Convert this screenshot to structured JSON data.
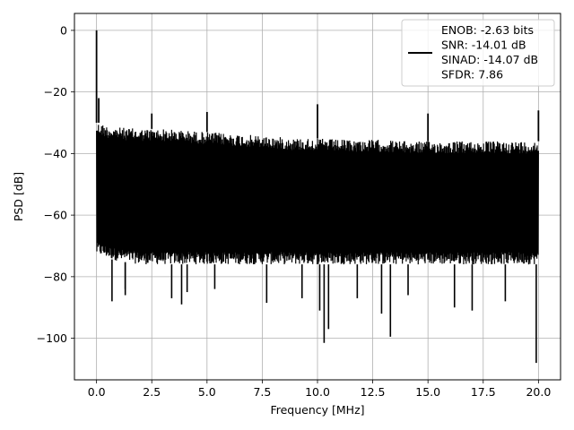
{
  "chart_data": {
    "type": "line",
    "xlabel": "Frequency [MHz]",
    "ylabel": "PSD [dB]",
    "xlim": [
      -1.0,
      21.0
    ],
    "ylim": [
      -113.5,
      5.5
    ],
    "xticks": [
      0.0,
      2.5,
      5.0,
      7.5,
      10.0,
      12.5,
      15.0,
      17.5,
      20.0
    ],
    "xtick_labels": [
      "0.0",
      "2.5",
      "5.0",
      "7.5",
      "10.0",
      "12.5",
      "15.0",
      "17.5",
      "20.0"
    ],
    "yticks": [
      0,
      -20,
      -40,
      -60,
      -80,
      -100
    ],
    "ytick_labels": [
      "0",
      "−20",
      "−40",
      "−60",
      "−80",
      "−100"
    ],
    "grid": true,
    "legend_position": "top-right",
    "series": [
      {
        "color": "#000000",
        "legend_lines": [
          "ENOB: -2.63 bits",
          "SNR: -14.01 dB",
          "SINAD: -14.07 dB",
          "SFDR: 7.86"
        ],
        "noise_envelope": {
          "x": [
            0.0,
            0.1,
            0.5,
            1.0,
            2.0,
            3.0,
            4.0,
            5.0,
            6.0,
            7.0,
            8.0,
            9.0,
            10.0,
            11.0,
            12.0,
            13.0,
            14.0,
            15.0,
            16.0,
            17.0,
            18.0,
            19.0,
            20.0
          ],
          "upper_db": [
            -30,
            -30,
            -31,
            -31.5,
            -32,
            -32,
            -32.5,
            -33,
            -33.5,
            -34,
            -34.5,
            -35,
            -35,
            -35.5,
            -35.5,
            -35.5,
            -36,
            -36,
            -36,
            -36,
            -36,
            -36,
            -36
          ],
          "lower_db": [
            -73,
            -73,
            -74,
            -75,
            -76,
            -76,
            -76,
            -76,
            -76,
            -76,
            -76,
            -76,
            -76,
            -76,
            -76,
            -76,
            -76,
            -76,
            -76,
            -76,
            -76,
            -76,
            -76
          ]
        },
        "spurs": [
          {
            "x": 0.0,
            "y": 0
          },
          {
            "x": 0.1,
            "y": -22
          },
          {
            "x": 2.5,
            "y": -27
          },
          {
            "x": 5.0,
            "y": -26.5
          },
          {
            "x": 10.0,
            "y": -24
          },
          {
            "x": 15.0,
            "y": -27
          },
          {
            "x": 20.0,
            "y": -26
          }
        ],
        "dips": [
          {
            "x": 0.7,
            "y": -88
          },
          {
            "x": 1.3,
            "y": -84
          },
          {
            "x": 1.3,
            "y": -86
          },
          {
            "x": 3.4,
            "y": -87
          },
          {
            "x": 3.85,
            "y": -89
          },
          {
            "x": 4.1,
            "y": -85
          },
          {
            "x": 5.35,
            "y": -84
          },
          {
            "x": 7.7,
            "y": -88.5
          },
          {
            "x": 9.3,
            "y": -87
          },
          {
            "x": 10.1,
            "y": -91
          },
          {
            "x": 10.3,
            "y": -101.5
          },
          {
            "x": 10.5,
            "y": -97
          },
          {
            "x": 11.8,
            "y": -87
          },
          {
            "x": 12.9,
            "y": -92
          },
          {
            "x": 13.3,
            "y": -99.5
          },
          {
            "x": 14.1,
            "y": -86
          },
          {
            "x": 16.2,
            "y": -90
          },
          {
            "x": 17.0,
            "y": -91
          },
          {
            "x": 18.5,
            "y": -88
          },
          {
            "x": 19.9,
            "y": -108
          }
        ]
      }
    ]
  }
}
